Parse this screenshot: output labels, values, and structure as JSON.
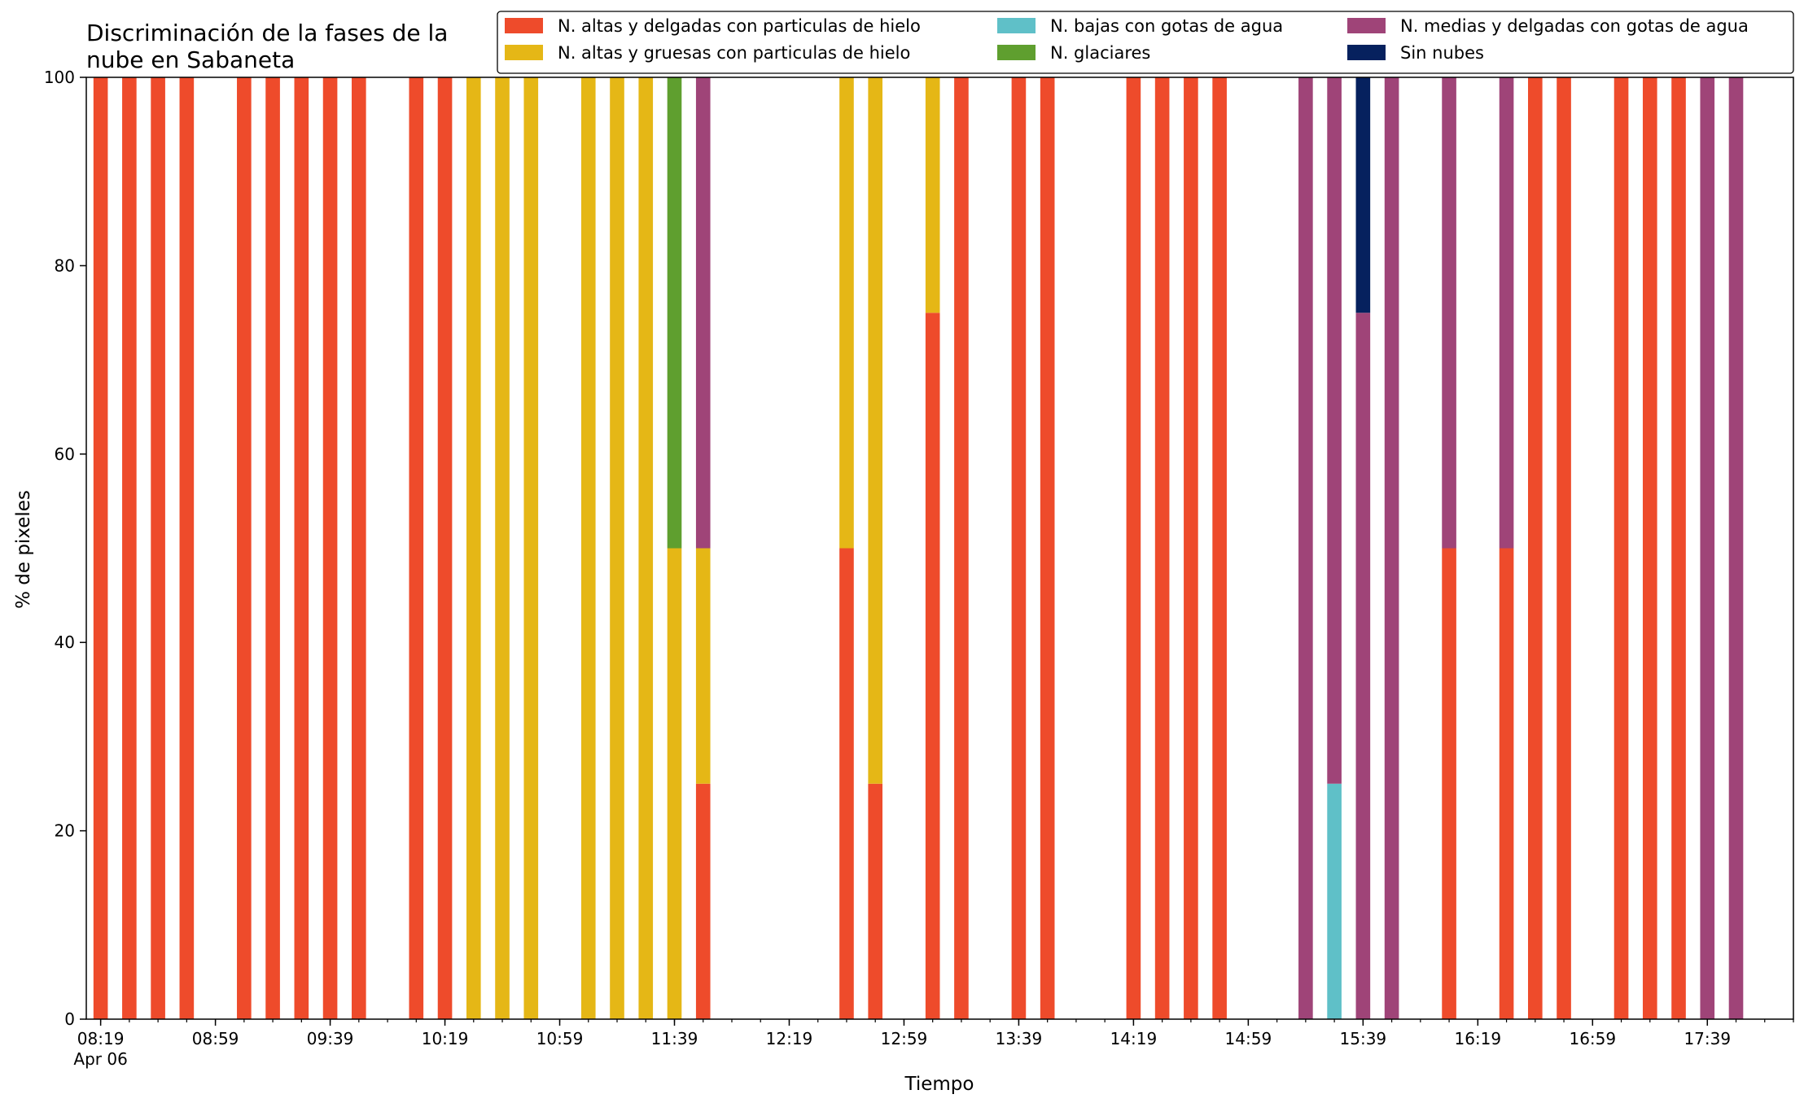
{
  "chart_data": {
    "type": "bar",
    "stacked": true,
    "title": "Discriminación de la fases de la\nnube en Sabaneta",
    "xlabel": "Tiempo",
    "ylabel": "% de pixeles",
    "ylim": [
      0,
      100
    ],
    "yticks": [
      0,
      20,
      40,
      60,
      80,
      100
    ],
    "xlim": [
      "08:14",
      "18:09"
    ],
    "x_major_ticks": [
      "08:19",
      "08:59",
      "09:39",
      "10:19",
      "10:59",
      "11:39",
      "12:19",
      "12:59",
      "13:39",
      "14:19",
      "14:59",
      "15:39",
      "16:19",
      "16:59",
      "17:39"
    ],
    "x_tick_sublabel": "Apr 06",
    "x_minor_tick_interval_minutes": 10,
    "bar_width_minutes": 5,
    "legend_position": "upper-right",
    "grid": false,
    "series": [
      {
        "name": "N. altas y delgadas con particulas de hielo",
        "color": "#EE4B2B"
      },
      {
        "name": "N. altas y gruesas con particulas de hielo",
        "color": "#E5B716"
      },
      {
        "name": "N. bajas con gotas de agua",
        "color": "#5FC0C8"
      },
      {
        "name": "N. glaciares",
        "color": "#5F9F2F"
      },
      {
        "name": "N. medias y delgadas con gotas de agua",
        "color": "#9F4478"
      },
      {
        "name": "Sin nubes",
        "color": "#06215E"
      }
    ],
    "bars": [
      {
        "time": "08:19",
        "values": [
          100,
          0,
          0,
          0,
          0,
          0
        ]
      },
      {
        "time": "08:29",
        "values": [
          100,
          0,
          0,
          0,
          0,
          0
        ]
      },
      {
        "time": "08:39",
        "values": [
          100,
          0,
          0,
          0,
          0,
          0
        ]
      },
      {
        "time": "08:49",
        "values": [
          100,
          0,
          0,
          0,
          0,
          0
        ]
      },
      {
        "time": "09:09",
        "values": [
          100,
          0,
          0,
          0,
          0,
          0
        ]
      },
      {
        "time": "09:19",
        "values": [
          100,
          0,
          0,
          0,
          0,
          0
        ]
      },
      {
        "time": "09:29",
        "values": [
          100,
          0,
          0,
          0,
          0,
          0
        ]
      },
      {
        "time": "09:39",
        "values": [
          100,
          0,
          0,
          0,
          0,
          0
        ]
      },
      {
        "time": "09:49",
        "values": [
          100,
          0,
          0,
          0,
          0,
          0
        ]
      },
      {
        "time": "10:09",
        "values": [
          100,
          0,
          0,
          0,
          0,
          0
        ]
      },
      {
        "time": "10:19",
        "values": [
          100,
          0,
          0,
          0,
          0,
          0
        ]
      },
      {
        "time": "10:29",
        "values": [
          0,
          100,
          0,
          0,
          0,
          0
        ]
      },
      {
        "time": "10:39",
        "values": [
          0,
          100,
          0,
          0,
          0,
          0
        ]
      },
      {
        "time": "10:49",
        "values": [
          0,
          100,
          0,
          0,
          0,
          0
        ]
      },
      {
        "time": "11:09",
        "values": [
          0,
          100,
          0,
          0,
          0,
          0
        ]
      },
      {
        "time": "11:19",
        "values": [
          0,
          100,
          0,
          0,
          0,
          0
        ]
      },
      {
        "time": "11:29",
        "values": [
          0,
          100,
          0,
          0,
          0,
          0
        ]
      },
      {
        "time": "11:39",
        "values": [
          0,
          50,
          0,
          50,
          0,
          0
        ]
      },
      {
        "time": "11:49",
        "values": [
          25,
          25,
          0,
          0,
          50,
          0
        ]
      },
      {
        "time": "12:39",
        "values": [
          50,
          50,
          0,
          0,
          0,
          0
        ]
      },
      {
        "time": "12:49",
        "values": [
          25,
          75,
          0,
          0,
          0,
          0
        ]
      },
      {
        "time": "13:09",
        "values": [
          75,
          25,
          0,
          0,
          0,
          0
        ]
      },
      {
        "time": "13:19",
        "values": [
          100,
          0,
          0,
          0,
          0,
          0
        ]
      },
      {
        "time": "13:39",
        "values": [
          100,
          0,
          0,
          0,
          0,
          0
        ]
      },
      {
        "time": "13:49",
        "values": [
          100,
          0,
          0,
          0,
          0,
          0
        ]
      },
      {
        "time": "14:19",
        "values": [
          100,
          0,
          0,
          0,
          0,
          0
        ]
      },
      {
        "time": "14:29",
        "values": [
          100,
          0,
          0,
          0,
          0,
          0
        ]
      },
      {
        "time": "14:39",
        "values": [
          100,
          0,
          0,
          0,
          0,
          0
        ]
      },
      {
        "time": "14:49",
        "values": [
          100,
          0,
          0,
          0,
          0,
          0
        ]
      },
      {
        "time": "15:19",
        "values": [
          0,
          0,
          0,
          0,
          100,
          0
        ]
      },
      {
        "time": "15:29",
        "values": [
          0,
          0,
          25,
          0,
          75,
          0
        ]
      },
      {
        "time": "15:39",
        "values": [
          0,
          0,
          0,
          0,
          75,
          25
        ]
      },
      {
        "time": "15:49",
        "values": [
          0,
          0,
          0,
          0,
          100,
          0
        ]
      },
      {
        "time": "16:09",
        "values": [
          50,
          0,
          0,
          0,
          50,
          0
        ]
      },
      {
        "time": "16:29",
        "values": [
          50,
          0,
          0,
          0,
          50,
          0
        ]
      },
      {
        "time": "16:39",
        "values": [
          100,
          0,
          0,
          0,
          0,
          0
        ]
      },
      {
        "time": "16:49",
        "values": [
          100,
          0,
          0,
          0,
          0,
          0
        ]
      },
      {
        "time": "17:09",
        "values": [
          100,
          0,
          0,
          0,
          0,
          0
        ]
      },
      {
        "time": "17:19",
        "values": [
          100,
          0,
          0,
          0,
          0,
          0
        ]
      },
      {
        "time": "17:29",
        "values": [
          100,
          0,
          0,
          0,
          0,
          0
        ]
      },
      {
        "time": "17:39",
        "values": [
          0,
          0,
          0,
          0,
          100,
          0
        ]
      },
      {
        "time": "17:49",
        "values": [
          0,
          0,
          0,
          0,
          100,
          0
        ]
      }
    ]
  }
}
